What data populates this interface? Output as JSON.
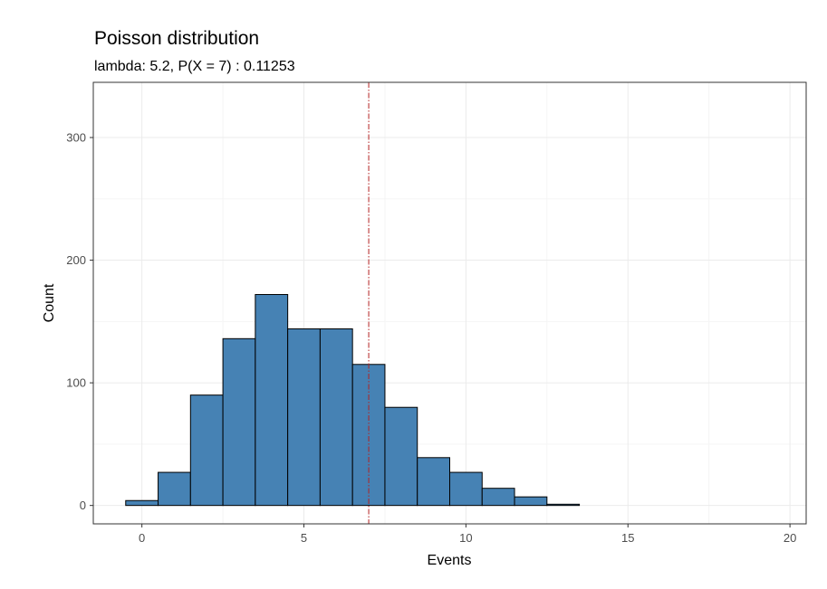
{
  "chart_data": {
    "type": "bar",
    "title": "Poisson distribution",
    "subtitle": "lambda: 5.2, P(X = 7) : 0.11253",
    "xlabel": "Events",
    "ylabel": "Count",
    "x": [
      0,
      1,
      2,
      3,
      4,
      5,
      6,
      7,
      8,
      9,
      10,
      11,
      12,
      13,
      14,
      15,
      16,
      17,
      18,
      19
    ],
    "values": [
      4,
      27,
      90,
      136,
      172,
      144,
      144,
      115,
      80,
      39,
      27,
      14,
      7,
      1,
      0,
      0,
      0,
      0,
      0,
      0
    ],
    "xlim": [
      -1.5,
      20.5
    ],
    "ylim": [
      -15,
      345
    ],
    "xticks": [
      0,
      5,
      10,
      15,
      20
    ],
    "yticks": [
      0,
      100,
      200,
      300
    ],
    "reference_line_x": 7,
    "grid": true,
    "colors": {
      "bar_fill": "#4682B4",
      "bar_stroke": "#000000",
      "reference_line": "#B22222",
      "grid_major": "#EBEBEB",
      "grid_minor": "#F5F5F5",
      "panel_border": "#333333"
    }
  }
}
